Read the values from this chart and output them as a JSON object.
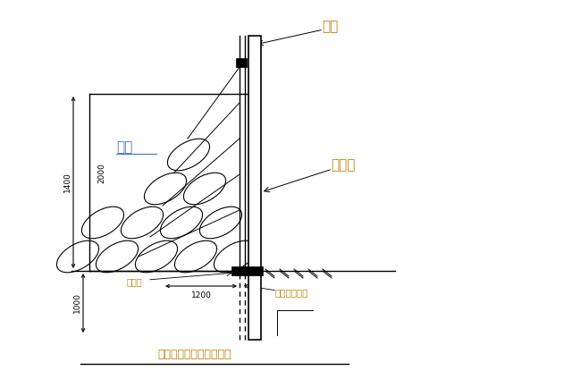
{
  "bg_color": "#ffffff",
  "line_color": "#000000",
  "label_color_orange": "#c8800a",
  "label_color_blue": "#4472c4",
  "title": "围墙墙体钉管沙袋加固图",
  "label_weidang": "围挡",
  "label_shudai": "沙袋",
  "label_linshuimian": "临水面",
  "label_gangguandaru": "钉管打入土体",
  "label_dagezi": "大樯子",
  "dim_2000": "2000",
  "dim_1400": "1400",
  "dim_1200": "1200",
  "dim_1000": "1000"
}
